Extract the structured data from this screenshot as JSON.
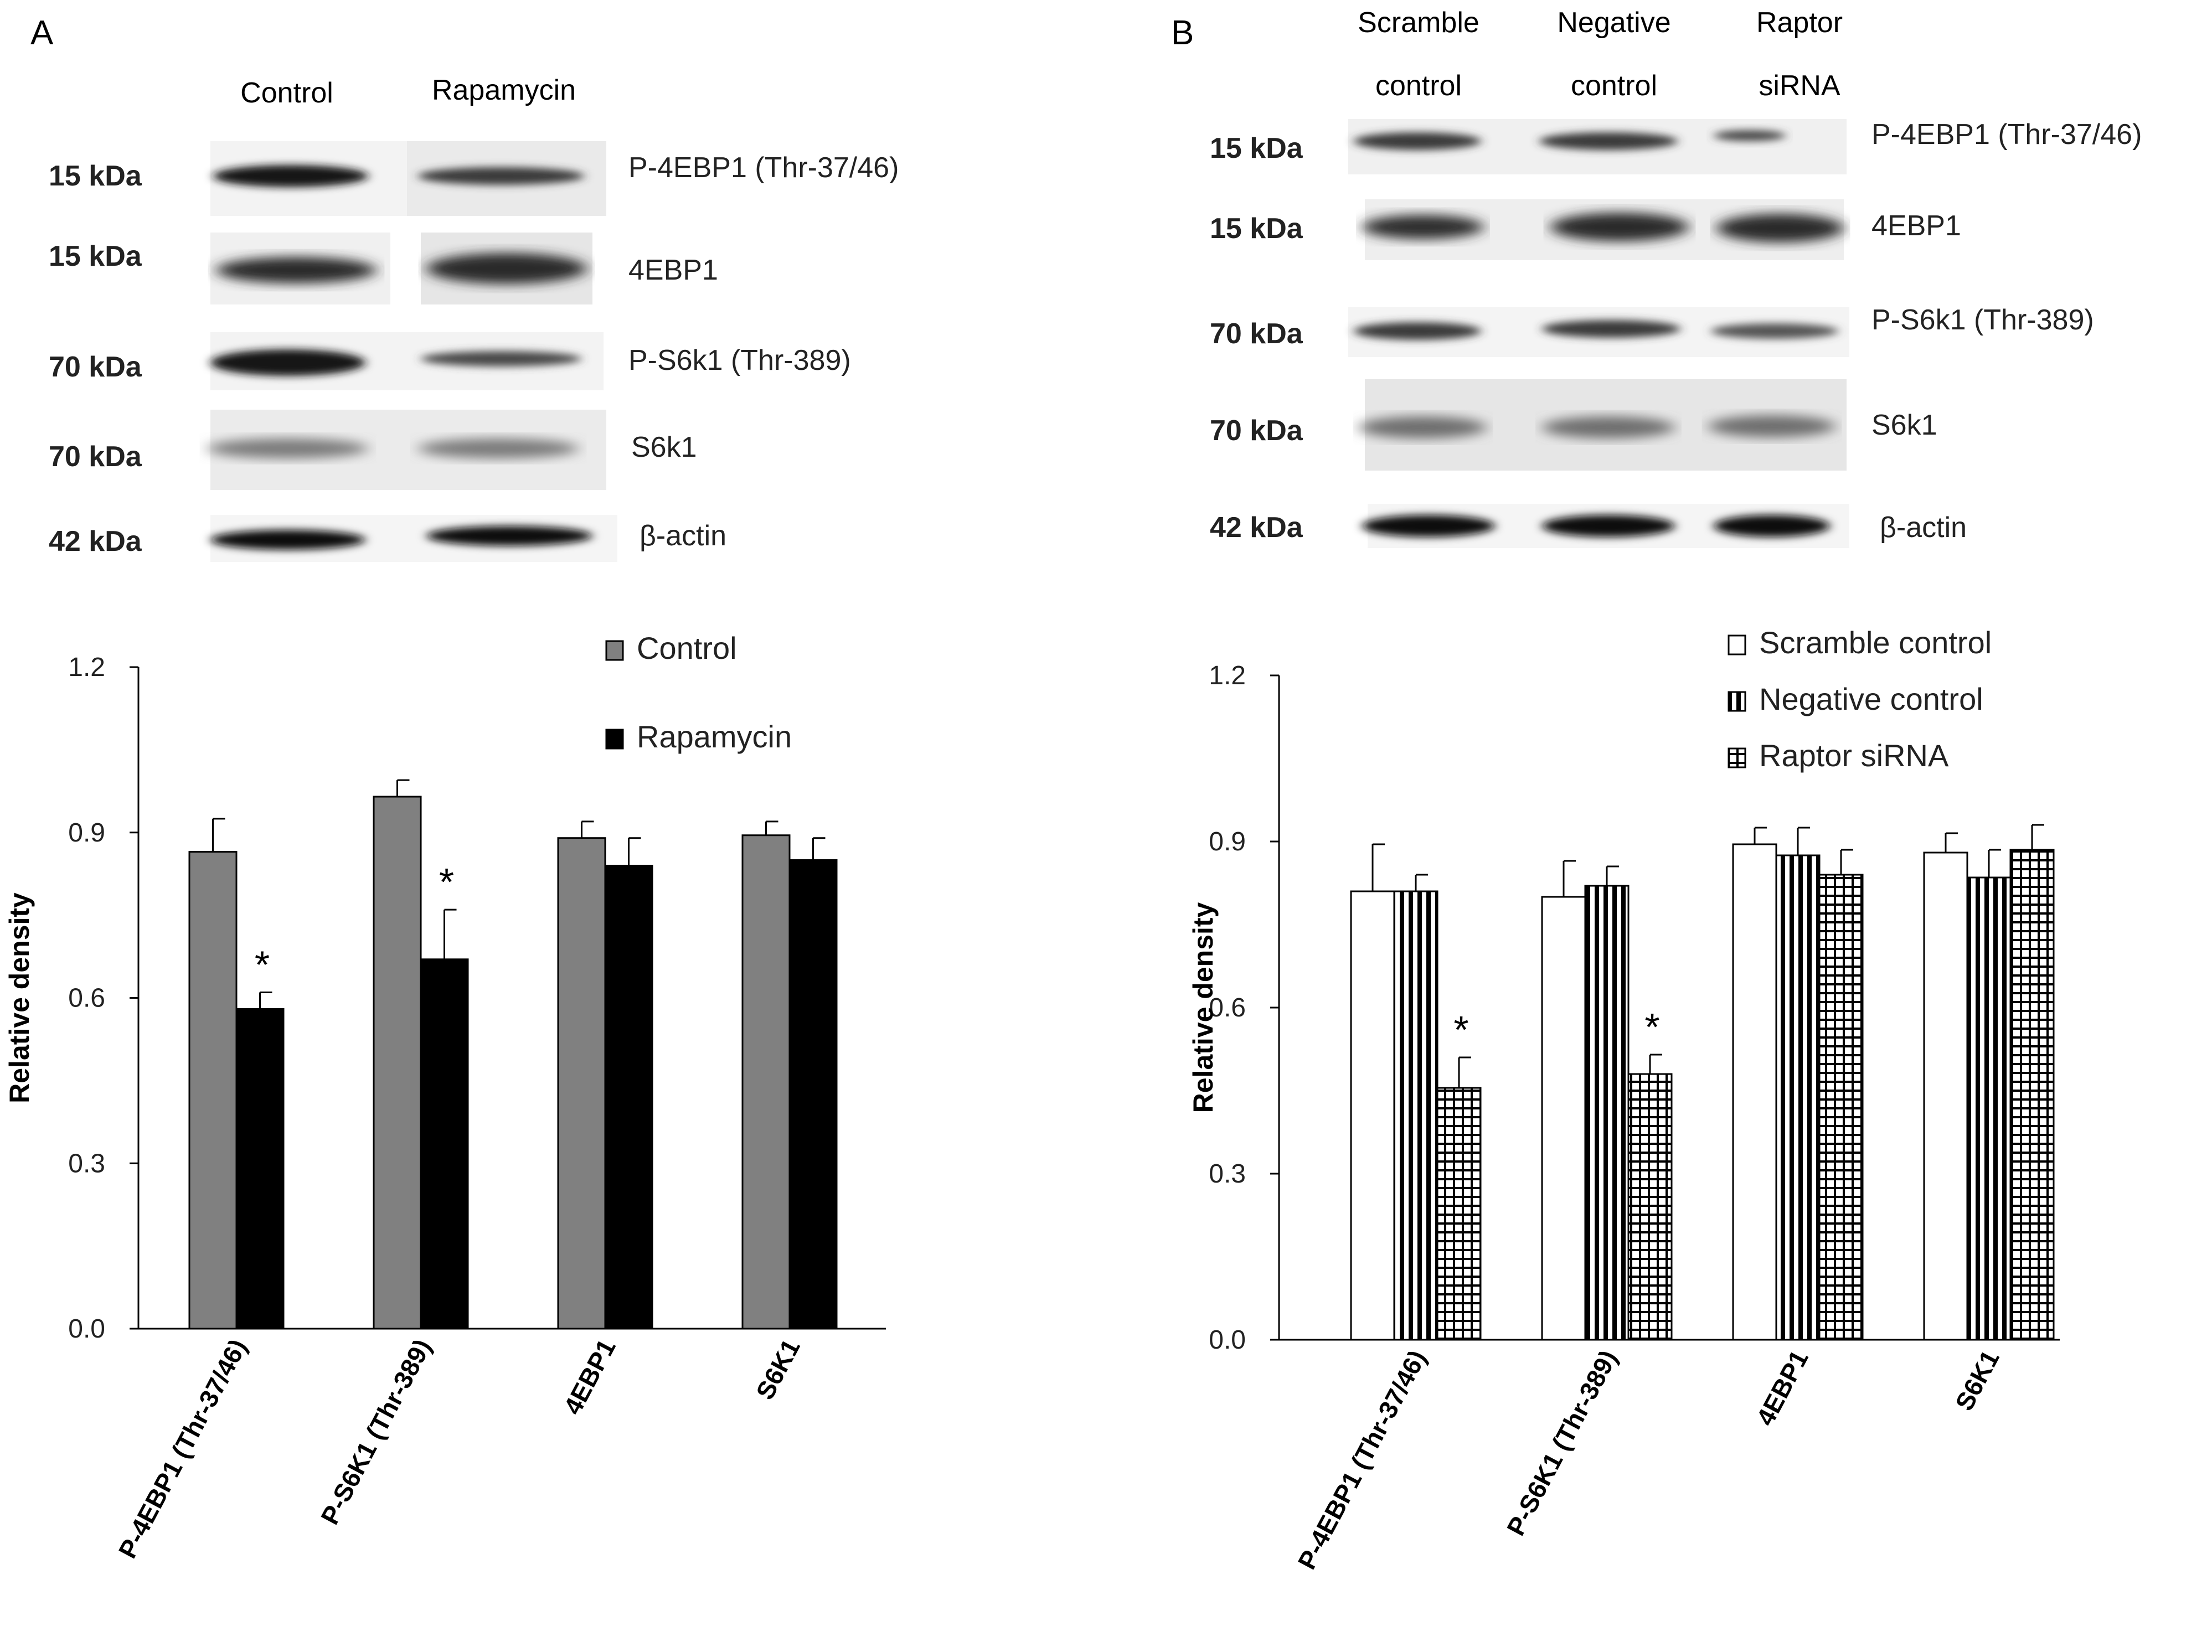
{
  "panels": [
    {
      "id": "A",
      "letter": "A",
      "blot": {
        "lanes": [
          "Control",
          "Rapamycin"
        ],
        "rows": [
          {
            "mw": "15 kDa",
            "label": "P-4EBP1 (Thr-37/46)"
          },
          {
            "mw": "15 kDa",
            "label": "4EBP1"
          },
          {
            "mw": "70 kDa",
            "label": "P-S6k1 (Thr-389)"
          },
          {
            "mw": "70 kDa",
            "label": "S6k1"
          },
          {
            "mw": "42 kDa",
            "label": "β-actin"
          }
        ]
      },
      "legend_placement": "top-right",
      "significance_marker": "*"
    },
    {
      "id": "B",
      "letter": "B",
      "blot": {
        "lanes": [
          [
            "Scramble",
            "control"
          ],
          [
            "Negative",
            "control"
          ],
          [
            "Raptor",
            "siRNA"
          ]
        ],
        "rows": [
          {
            "mw": "15 kDa",
            "label": "P-4EBP1 (Thr-37/46)"
          },
          {
            "mw": "15 kDa",
            "label": "4EBP1"
          },
          {
            "mw": "70 kDa",
            "label": "P-S6k1 (Thr-389)"
          },
          {
            "mw": "70 kDa",
            "label": "S6k1"
          },
          {
            "mw": "42 kDa",
            "label": "β-actin"
          }
        ]
      },
      "legend_placement": "top-right",
      "significance_marker": "*"
    }
  ],
  "colors": {
    "control_gray": "#808080",
    "rapamycin_black": "#000000",
    "open_white": "#ffffff",
    "axis": "#000000"
  },
  "chart_data": [
    {
      "panel": "A",
      "type": "bar",
      "categories": [
        "P-4EBP1 (Thr-37/46)",
        "P-S6K1 (Thr-389)",
        "4EBP1",
        "S6K1"
      ],
      "series": [
        {
          "name": "Control",
          "fill": "solid-gray",
          "values": [
            0.865,
            0.965,
            0.89,
            0.895
          ],
          "errors": [
            0.06,
            0.03,
            0.03,
            0.025
          ]
        },
        {
          "name": "Rapamycin",
          "fill": "solid-black",
          "values": [
            0.58,
            0.67,
            0.84,
            0.85
          ],
          "errors": [
            0.03,
            0.09,
            0.05,
            0.04
          ]
        }
      ],
      "significant": [
        [
          1,
          0
        ],
        [
          1,
          1
        ]
      ],
      "ylabel": "Relative density",
      "ylim": [
        0,
        1.2
      ],
      "yticks": [
        "0.0",
        "0.3",
        "0.6",
        "0.9",
        "1.2"
      ],
      "grid": false
    },
    {
      "panel": "B",
      "type": "bar",
      "categories": [
        "P-4EBP1 (Thr-37/46)",
        "P-S6K1 (Thr-389)",
        "4EBP1",
        "S6K1"
      ],
      "series": [
        {
          "name": "Scramble control",
          "fill": "open",
          "values": [
            0.81,
            0.8,
            0.895,
            0.88
          ],
          "errors": [
            0.085,
            0.065,
            0.03,
            0.035
          ]
        },
        {
          "name": "Negative control",
          "fill": "vertical-stripes",
          "values": [
            0.81,
            0.82,
            0.875,
            0.835
          ],
          "errors": [
            0.03,
            0.035,
            0.05,
            0.05
          ]
        },
        {
          "name": "Raptor siRNA",
          "fill": "crosshatch",
          "values": [
            0.455,
            0.48,
            0.84,
            0.885
          ],
          "errors": [
            0.055,
            0.035,
            0.045,
            0.045
          ]
        }
      ],
      "significant": [
        [
          2,
          0
        ],
        [
          2,
          1
        ]
      ],
      "ylabel": "Relative density",
      "ylim": [
        0,
        1.2
      ],
      "yticks": [
        "0.0",
        "0.3",
        "0.6",
        "0.9",
        "1.2"
      ],
      "grid": false
    }
  ]
}
